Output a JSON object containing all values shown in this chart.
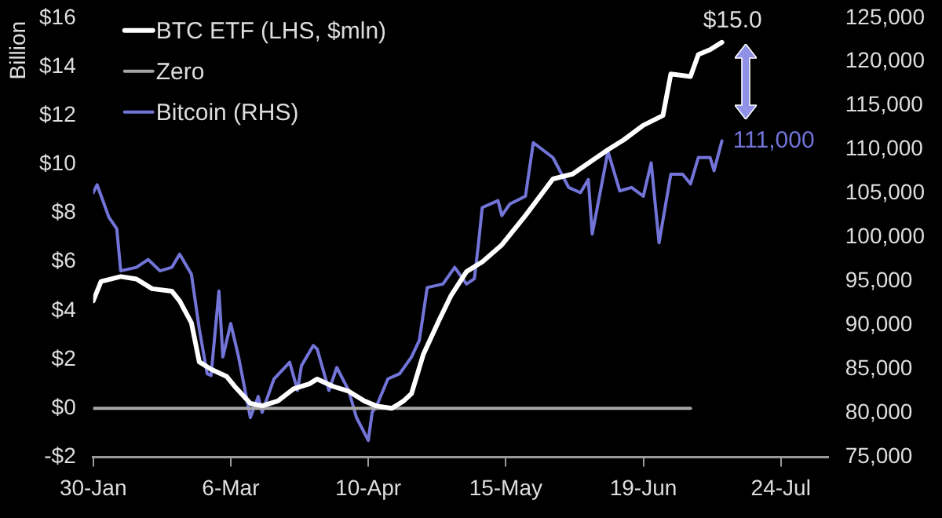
{
  "chart_data": {
    "type": "line",
    "ylabel": "Billion",
    "xlim": [
      "--01-30",
      "--08-05"
    ],
    "xticks": [
      {
        "value": "--01-30",
        "label": "30-Jan"
      },
      {
        "value": "--03-06",
        "label": "6-Mar"
      },
      {
        "value": "--04-10",
        "label": "10-Apr"
      },
      {
        "value": "--05-15",
        "label": "15-May"
      },
      {
        "value": "--06-19",
        "label": "19-Jun"
      },
      {
        "value": "--07-24",
        "label": "24-Jul"
      }
    ],
    "ylim": [
      -2,
      16
    ],
    "yticks": [
      {
        "value": -2,
        "label": "-$2"
      },
      {
        "value": 0,
        "label": "$0"
      },
      {
        "value": 2,
        "label": "$2"
      },
      {
        "value": 4,
        "label": "$4"
      },
      {
        "value": 6,
        "label": "$6"
      },
      {
        "value": 8,
        "label": "$8"
      },
      {
        "value": 10,
        "label": "$10"
      },
      {
        "value": 12,
        "label": "$12"
      },
      {
        "value": 14,
        "label": "$14"
      },
      {
        "value": 16,
        "label": "$16"
      }
    ],
    "y2lim": [
      75000,
      125000
    ],
    "y2ticks": [
      {
        "value": 75000,
        "label": "75,000"
      },
      {
        "value": 80000,
        "label": "80,000"
      },
      {
        "value": 85000,
        "label": "85,000"
      },
      {
        "value": 90000,
        "label": "90,000"
      },
      {
        "value": 95000,
        "label": "95,000"
      },
      {
        "value": 100000,
        "label": "100,000"
      },
      {
        "value": 105000,
        "label": "105,000"
      },
      {
        "value": 110000,
        "label": "110,000"
      },
      {
        "value": 115000,
        "label": "115,000"
      },
      {
        "value": 120000,
        "label": "120,000"
      },
      {
        "value": 125000,
        "label": "125,000"
      }
    ],
    "grid": false,
    "legend": "top left",
    "marker": "none",
    "line_style": "solid",
    "series": [
      {
        "name": "BTC ETF (LHS, $mln)",
        "color": "#ffffff",
        "x": [
          "--01-30",
          "--02-01",
          "--02-06",
          "--02-10",
          "--02-14",
          "--02-19",
          "--02-21",
          "--02-24",
          "--02-26",
          "--03-01",
          "--03-05",
          "--03-07",
          "--03-11",
          "--03-14",
          "--03-18",
          "--03-22",
          "--03-26",
          "--03-28",
          "--04-01",
          "--04-05",
          "--04-09",
          "--04-12",
          "--04-16",
          "--04-19",
          "--04-21",
          "--04-24",
          "--04-28",
          "--05-01",
          "--05-05",
          "--05-08",
          "--05-09",
          "--05-14",
          "--05-20",
          "--05-27",
          "--06-01",
          "--06-10",
          "--06-14",
          "--06-19",
          "--06-24",
          "--06-26",
          "--07-01",
          "--07-03",
          "--07-06",
          "--07-09"
        ],
        "values": [
          4.4,
          5.2,
          5.4,
          5.3,
          4.9,
          4.8,
          4.4,
          3.5,
          1.9,
          1.6,
          1.3,
          0.9,
          0.2,
          0.1,
          0.3,
          0.8,
          1.0,
          1.2,
          0.9,
          0.7,
          0.3,
          0.1,
          0.0,
          0.3,
          0.6,
          2.2,
          3.6,
          4.6,
          5.6,
          5.9,
          6.0,
          6.7,
          7.9,
          9.4,
          9.6,
          10.6,
          11.0,
          11.6,
          12.0,
          13.7,
          13.6,
          14.5,
          14.7,
          15.0
        ],
        "value_labels": [
          null,
          null,
          null,
          null,
          null,
          null,
          null,
          null,
          null,
          null,
          null,
          null,
          null,
          null,
          null,
          null,
          null,
          null,
          null,
          null,
          null,
          null,
          null,
          null,
          null,
          null,
          null,
          null,
          null,
          null,
          null,
          null,
          null,
          null,
          null,
          null,
          null,
          null,
          null,
          null,
          null,
          null,
          null,
          "$15.0"
        ]
      },
      {
        "name": "Zero",
        "color": "#a6a6a6",
        "x": [
          "--01-30",
          "--07-01"
        ],
        "values": [
          0,
          0
        ]
      },
      {
        "name": "Bitcoin (RHS)",
        "color": "#7274d8",
        "axis": "y2",
        "x": [
          "--01-30",
          "--01-31",
          "--02-03",
          "--02-05",
          "--02-06",
          "--02-10",
          "--02-13",
          "--02-16",
          "--02-19",
          "--02-21",
          "--02-24",
          "--02-26",
          "--02-28",
          "--03-01",
          "--03-03",
          "--03-04",
          "--03-06",
          "--03-08",
          "--03-11",
          "--03-13",
          "--03-14",
          "--03-17",
          "--03-21",
          "--03-23",
          "--03-24",
          "--03-27",
          "--03-28",
          "--03-31",
          "--04-02",
          "--04-05",
          "--04-07",
          "--04-10",
          "--04-11",
          "--04-12",
          "--04-15",
          "--04-18",
          "--04-21",
          "--04-23",
          "--04-25",
          "--04-29",
          "--05-02",
          "--05-05",
          "--05-07",
          "--05-08",
          "--05-09",
          "--05-13",
          "--05-14",
          "--05-16",
          "--05-20",
          "--05-22",
          "--05-27",
          "--05-31",
          "--06-03",
          "--06-05",
          "--06-06",
          "--06-10",
          "--06-13",
          "--06-16",
          "--06-19",
          "--06-21",
          "--06-23",
          "--06-26",
          "--06-29",
          "--07-01",
          "--07-03",
          "--07-06",
          "--07-07",
          "--07-09"
        ],
        "values": [
          105100,
          106000,
          102300,
          101000,
          96200,
          96600,
          97500,
          96200,
          96600,
          98100,
          95800,
          89600,
          84500,
          84300,
          93900,
          86400,
          90200,
          86400,
          79500,
          81900,
          80100,
          83900,
          85800,
          82600,
          85400,
          87700,
          87300,
          82600,
          85200,
          82600,
          79500,
          76900,
          80100,
          80700,
          83900,
          84500,
          86400,
          88300,
          94300,
          94700,
          96600,
          94700,
          95300,
          99100,
          103400,
          104200,
          102500,
          103800,
          104700,
          110800,
          109100,
          105700,
          105100,
          106600,
          100400,
          109800,
          105300,
          105700,
          104700,
          108500,
          99400,
          107200,
          107200,
          106100,
          109100,
          109100,
          107600,
          111000
        ],
        "value_labels": [
          null,
          null,
          null,
          null,
          null,
          null,
          null,
          null,
          null,
          null,
          null,
          null,
          null,
          null,
          null,
          null,
          null,
          null,
          null,
          null,
          null,
          null,
          null,
          null,
          null,
          null,
          null,
          null,
          null,
          null,
          null,
          null,
          null,
          null,
          null,
          null,
          null,
          null,
          null,
          null,
          null,
          null,
          null,
          null,
          null,
          null,
          null,
          null,
          null,
          null,
          null,
          null,
          null,
          null,
          null,
          null,
          null,
          null,
          null,
          null,
          null,
          null,
          null,
          null,
          null,
          null,
          null,
          "111,000"
        ]
      }
    ]
  }
}
